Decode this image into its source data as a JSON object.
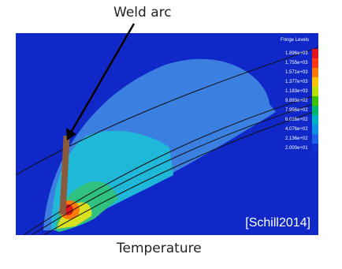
{
  "labels": {
    "top": "Weld arc",
    "bottom": "Temperature",
    "citation": "[Schill2014]"
  },
  "legend": {
    "title": "Fringe Levels",
    "levels": [
      {
        "value": "1.896e+03",
        "color": "#e0141b"
      },
      {
        "value": "1.755e+03",
        "color": "#ff3a10"
      },
      {
        "value": "1.571e+03",
        "color": "#ff7a05"
      },
      {
        "value": "1.377e+03",
        "color": "#ffc400"
      },
      {
        "value": "1.183e+03",
        "color": "#b8e000"
      },
      {
        "value": "9.893e+02",
        "color": "#3cc400"
      },
      {
        "value": "7.956e+02",
        "color": "#00b86a"
      },
      {
        "value": "6.016e+02",
        "color": "#00b0c8"
      },
      {
        "value": "4.076e+02",
        "color": "#1090e0"
      },
      {
        "value": "2.136e+02",
        "color": "#2060e8"
      },
      {
        "value": "2.000e+01",
        "color": "#1030d0"
      }
    ]
  },
  "colors": {
    "background": "#1028c8",
    "electrode": "#8a5a3c"
  }
}
